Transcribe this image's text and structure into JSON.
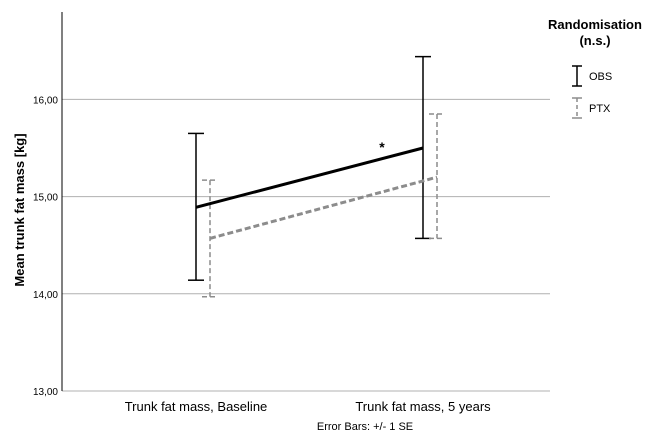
{
  "chart_data": {
    "type": "line",
    "title": "",
    "xlabel": "",
    "ylabel": "Mean trunk fat mass [kg]",
    "categories": [
      "Trunk fat mass, Baseline",
      "Trunk fat mass, 5 years"
    ],
    "y_ticks": [
      "13,00",
      "14,00",
      "15,00",
      "16,00"
    ],
    "ylim": [
      13.0,
      16.95
    ],
    "grid": "horizontal",
    "legend_position": "top-right",
    "legend_title": "Randomisation\n(n.s.)",
    "footnote": "Error Bars: +/- 1 SE",
    "annotation": "*",
    "series": [
      {
        "name": "OBS",
        "style": "solid",
        "color": "#000000",
        "values": [
          14.89,
          15.5
        ],
        "error_low": [
          14.14,
          14.57
        ],
        "error_high": [
          15.65,
          16.44
        ]
      },
      {
        "name": "PTX",
        "style": "dashed",
        "color": "#8c8c8c",
        "values": [
          14.57,
          15.2
        ],
        "error_low": [
          13.97,
          14.57
        ],
        "error_high": [
          15.17,
          15.85
        ]
      }
    ]
  }
}
